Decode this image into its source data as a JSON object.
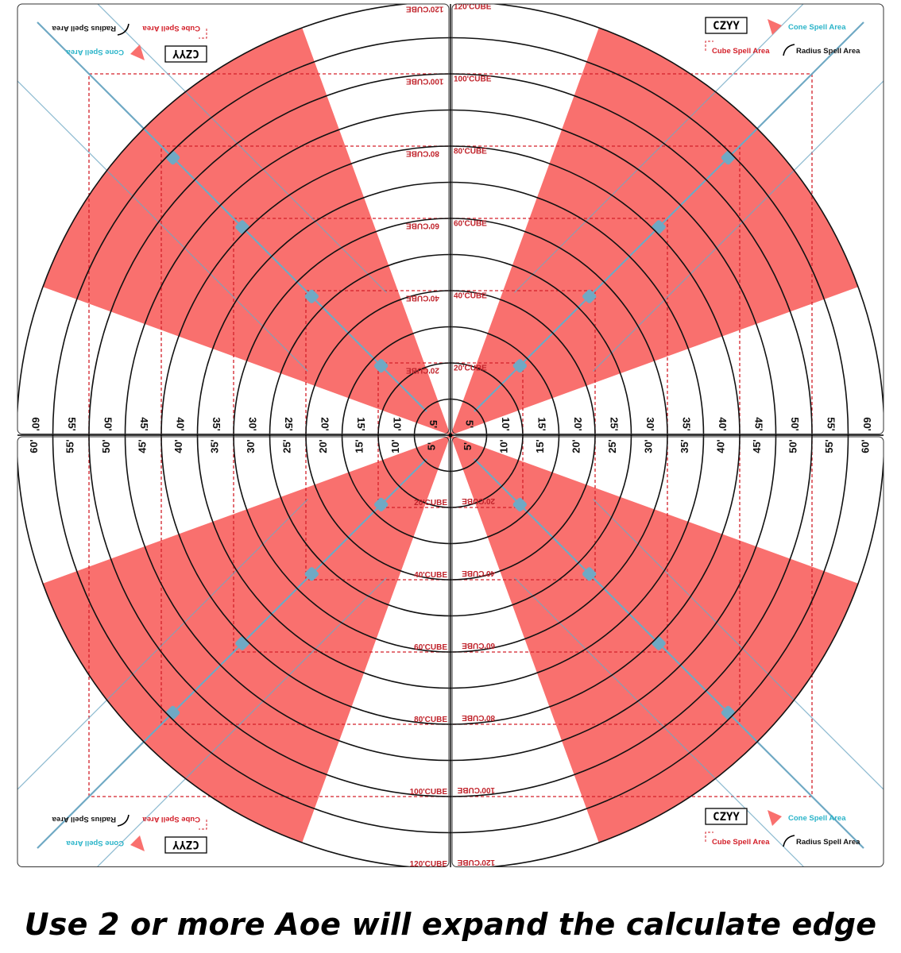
{
  "caption": "Use 2 or more Aoe will expand the calculate edge",
  "colors": {
    "cone_fill": "#f9706e",
    "ring_stroke": "#111111",
    "cube_stroke": "#d3202a",
    "guide_line": "#6fa9c4",
    "legend_cone_text": "#2ab4c9",
    "legend_cube_text": "#d3202a",
    "legend_radius_text": "#111111"
  },
  "diagram": {
    "ring_labels": [
      "5'",
      "10'",
      "15'",
      "20'",
      "25'",
      "30'",
      "35'",
      "40'",
      "45'",
      "50'",
      "55'",
      "60'"
    ],
    "cube_labels": [
      "20'CUBE",
      "40'CUBE",
      "60'CUBE",
      "80'CUBE",
      "100'CUBE",
      "120'CUBE"
    ],
    "cone_sectors_degrees": [
      {
        "from": 20,
        "to": 70
      },
      {
        "from": 110,
        "to": 160
      },
      {
        "from": 200,
        "to": 250
      },
      {
        "from": 290,
        "to": 340
      }
    ]
  },
  "legend": {
    "logo": "CZYY",
    "cone": "Cone Spell Area",
    "cube": "Cube Spell Area",
    "radius": "Radius Spell Area"
  },
  "icons": {
    "cone": "cone-triangle-icon",
    "cube": "dashed-square-icon",
    "radius": "arc-icon"
  }
}
